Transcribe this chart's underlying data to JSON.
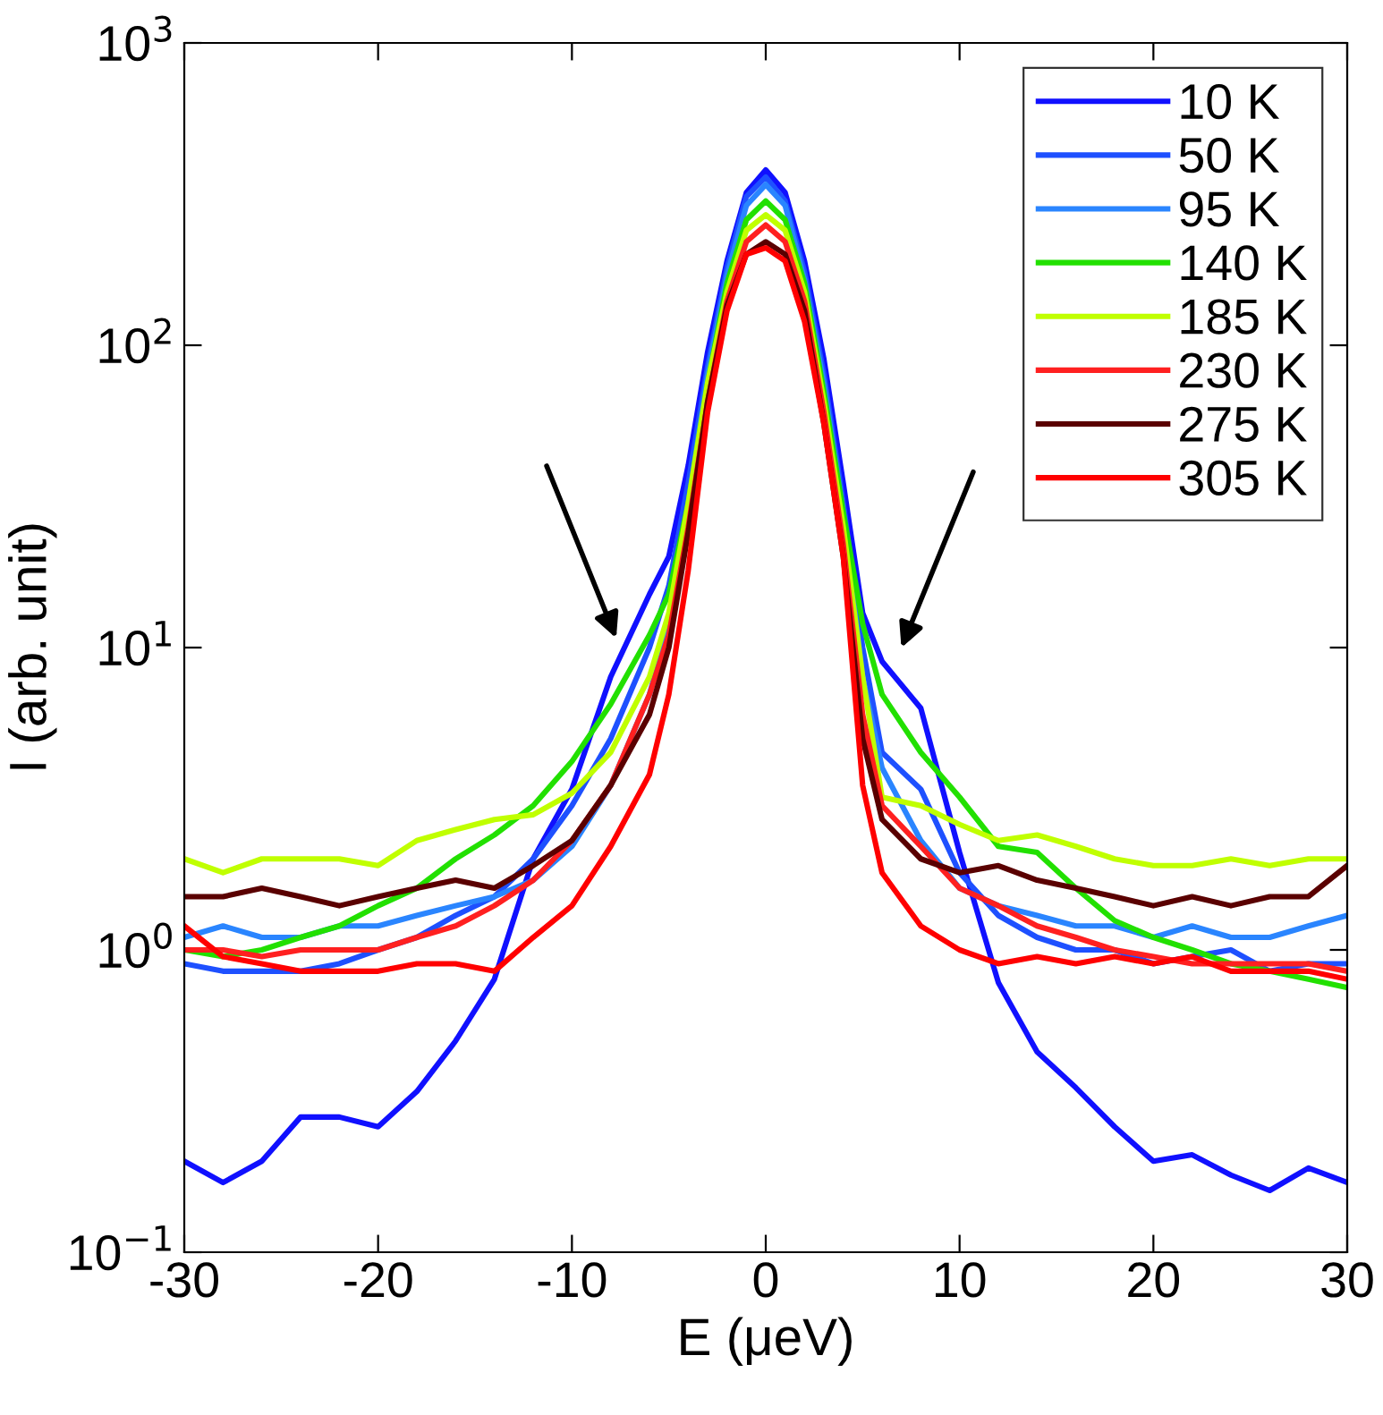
{
  "chart_data": {
    "type": "line",
    "xlabel": "E (μeV)",
    "ylabel": "I (arb. unit)",
    "x": [
      -30,
      -28,
      -26,
      -24,
      -22,
      -20,
      -18,
      -16,
      -14,
      -12,
      -10,
      -8,
      -6,
      -5,
      -4,
      -3,
      -2,
      -1,
      0,
      1,
      2,
      3,
      4,
      5,
      6,
      8,
      10,
      12,
      14,
      16,
      18,
      20,
      22,
      24,
      26,
      28,
      30
    ],
    "series": [
      {
        "name": "10 K",
        "color": "#1010ff",
        "values": [
          0.2,
          0.17,
          0.2,
          0.28,
          0.28,
          0.26,
          0.34,
          0.5,
          0.8,
          2.0,
          3.4,
          8,
          15,
          20,
          40,
          95,
          190,
          320,
          380,
          320,
          190,
          90,
          35,
          13,
          9,
          6.3,
          2.1,
          0.78,
          0.46,
          0.35,
          0.26,
          0.2,
          0.21,
          0.18,
          0.16,
          0.19,
          0.17
        ]
      },
      {
        "name": "50 K",
        "color": "#1e50ff",
        "values": [
          0.9,
          0.85,
          0.85,
          0.85,
          0.9,
          1.0,
          1.1,
          1.3,
          1.5,
          2.0,
          3.0,
          5.0,
          10,
          16,
          35,
          85,
          180,
          310,
          360,
          300,
          175,
          80,
          30,
          10,
          4.5,
          3.4,
          1.8,
          1.3,
          1.1,
          1.0,
          1.0,
          0.9,
          0.95,
          1.0,
          0.85,
          0.9,
          0.9
        ]
      },
      {
        "name": "95 K",
        "color": "#2a85ff",
        "values": [
          1.1,
          1.2,
          1.1,
          1.1,
          1.2,
          1.2,
          1.3,
          1.4,
          1.5,
          1.7,
          2.2,
          3.5,
          7,
          12,
          30,
          80,
          170,
          290,
          340,
          290,
          165,
          75,
          28,
          8,
          4,
          2.3,
          1.6,
          1.4,
          1.3,
          1.2,
          1.2,
          1.1,
          1.2,
          1.1,
          1.1,
          1.2,
          1.3
        ]
      },
      {
        "name": "140 K",
        "color": "#22e000",
        "values": [
          1.0,
          0.95,
          1.0,
          1.1,
          1.2,
          1.4,
          1.6,
          2.0,
          2.4,
          3.0,
          4.2,
          6.5,
          11,
          15,
          30,
          75,
          160,
          260,
          300,
          260,
          160,
          70,
          28,
          12,
          7,
          4.5,
          3.2,
          2.2,
          2.1,
          1.6,
          1.25,
          1.1,
          1.0,
          0.9,
          0.85,
          0.8,
          0.75
        ]
      },
      {
        "name": "185 K",
        "color": "#c0ff00",
        "values": [
          2.0,
          1.8,
          2.0,
          2.0,
          2.0,
          1.9,
          2.3,
          2.5,
          2.7,
          2.8,
          3.3,
          4.5,
          8,
          13,
          30,
          75,
          150,
          240,
          270,
          240,
          150,
          65,
          25,
          8,
          3.2,
          3.0,
          2.6,
          2.3,
          2.4,
          2.2,
          2.0,
          1.9,
          1.9,
          2.0,
          1.9,
          2.0,
          2.0
        ]
      },
      {
        "name": "230 K",
        "color": "#ff2020",
        "values": [
          1.0,
          1.0,
          0.95,
          1.0,
          1.0,
          1.0,
          1.1,
          1.2,
          1.4,
          1.7,
          2.3,
          3.5,
          7,
          11,
          25,
          65,
          140,
          220,
          250,
          220,
          140,
          60,
          22,
          6,
          3,
          2.2,
          1.6,
          1.4,
          1.2,
          1.1,
          1.0,
          0.95,
          0.9,
          0.9,
          0.9,
          0.9,
          0.85
        ]
      },
      {
        "name": "275 K",
        "color": "#5a0000",
        "values": [
          1.5,
          1.5,
          1.6,
          1.5,
          1.4,
          1.5,
          1.6,
          1.7,
          1.6,
          1.9,
          2.3,
          3.5,
          6,
          10,
          24,
          65,
          135,
          200,
          220,
          200,
          130,
          55,
          20,
          5,
          2.7,
          2.0,
          1.8,
          1.9,
          1.7,
          1.6,
          1.5,
          1.4,
          1.5,
          1.4,
          1.5,
          1.5,
          1.9
        ]
      },
      {
        "name": "305 K",
        "color": "#ff0000",
        "values": [
          1.2,
          0.95,
          0.9,
          0.85,
          0.85,
          0.85,
          0.9,
          0.9,
          0.85,
          1.1,
          1.4,
          2.2,
          3.8,
          7,
          18,
          60,
          130,
          200,
          210,
          190,
          120,
          55,
          20,
          3.5,
          1.8,
          1.2,
          1.0,
          0.9,
          0.95,
          0.9,
          0.95,
          0.9,
          0.95,
          0.85,
          0.85,
          0.85,
          0.8
        ]
      }
    ],
    "log": "y",
    "xlim": [
      -30,
      30
    ],
    "xticks": [
      -30,
      -20,
      -10,
      0,
      10,
      20,
      30
    ],
    "ylim": [
      0.1,
      1000
    ],
    "yticks": [
      {
        "value": 0.1,
        "label": "10$^{−1}$"
      },
      {
        "value": 1,
        "label": "10$^{0}$"
      },
      {
        "value": 10,
        "label": "10$^{1}$"
      },
      {
        "value": 100,
        "label": "10$^{2}$"
      },
      {
        "value": 1000,
        "label": "10$^{3}$"
      }
    ],
    "legend": "top right",
    "grid": false,
    "line_style": "solid"
  }
}
